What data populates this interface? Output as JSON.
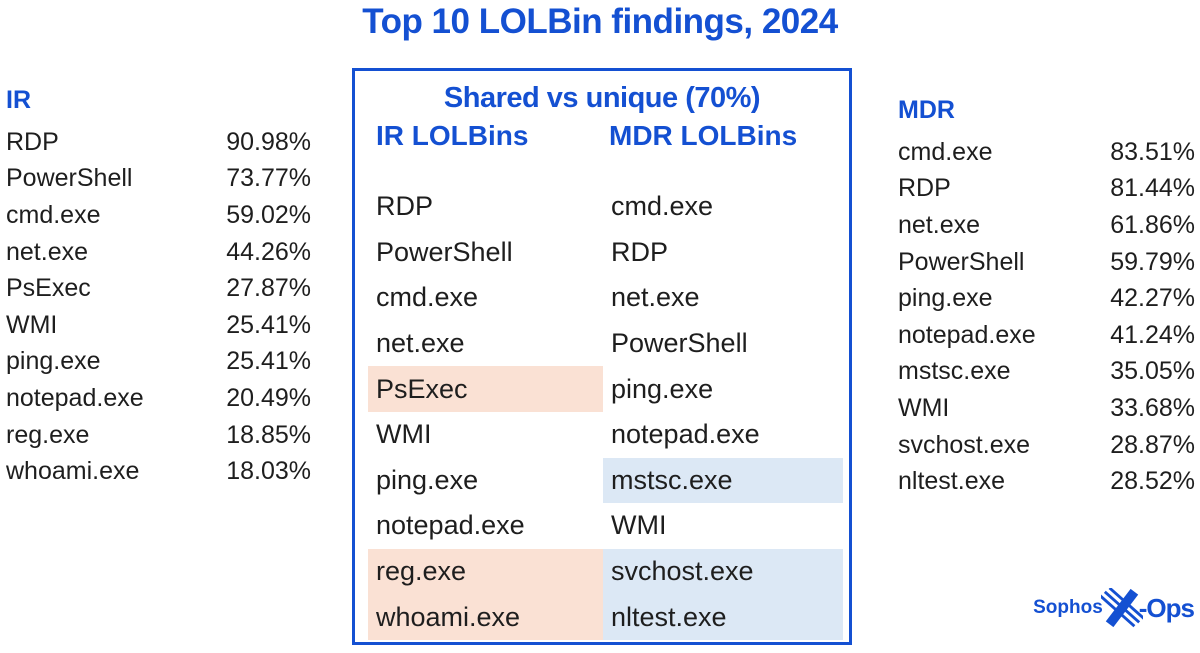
{
  "title": "Top 10 LOLBin findings, 2024",
  "colors": {
    "brand_blue": "#1450d2",
    "ir_unique_bg": "#fae1d4",
    "mdr_unique_bg": "#dce8f5",
    "text": "#1e1e1e"
  },
  "left_table": {
    "header": "IR",
    "rows": [
      {
        "name": "RDP",
        "value": "90.98%"
      },
      {
        "name": "PowerShell",
        "value": "73.77%"
      },
      {
        "name": "cmd.exe",
        "value": "59.02%"
      },
      {
        "name": "net.exe",
        "value": "44.26%"
      },
      {
        "name": "PsExec",
        "value": "27.87%"
      },
      {
        "name": "WMI",
        "value": "25.41%"
      },
      {
        "name": "ping.exe",
        "value": "25.41%"
      },
      {
        "name": "notepad.exe",
        "value": "20.49%"
      },
      {
        "name": "reg.exe",
        "value": "18.85%"
      },
      {
        "name": "whoami.exe",
        "value": "18.03%"
      }
    ]
  },
  "right_table": {
    "header": "MDR",
    "rows": [
      {
        "name": "cmd.exe",
        "value": "83.51%"
      },
      {
        "name": "RDP",
        "value": "81.44%"
      },
      {
        "name": "net.exe",
        "value": "61.86%"
      },
      {
        "name": "PowerShell",
        "value": "59.79%"
      },
      {
        "name": "ping.exe",
        "value": "42.27%"
      },
      {
        "name": "notepad.exe",
        "value": "41.24%"
      },
      {
        "name": "mstsc.exe",
        "value": "35.05%"
      },
      {
        "name": "WMI",
        "value": "33.68%"
      },
      {
        "name": "svchost.exe",
        "value": "28.87%"
      },
      {
        "name": "nltest.exe",
        "value": "28.52%"
      }
    ]
  },
  "center_box": {
    "title": "Shared vs unique (70%)",
    "ir_header": "IR LOLBins",
    "mdr_header": "MDR LOLBins",
    "rows": [
      {
        "ir": "RDP",
        "ir_unique": false,
        "mdr": "cmd.exe",
        "mdr_unique": false
      },
      {
        "ir": "PowerShell",
        "ir_unique": false,
        "mdr": "RDP",
        "mdr_unique": false
      },
      {
        "ir": "cmd.exe",
        "ir_unique": false,
        "mdr": "net.exe",
        "mdr_unique": false
      },
      {
        "ir": "net.exe",
        "ir_unique": false,
        "mdr": "PowerShell",
        "mdr_unique": false
      },
      {
        "ir": "PsExec",
        "ir_unique": true,
        "mdr": "ping.exe",
        "mdr_unique": false
      },
      {
        "ir": "WMI",
        "ir_unique": false,
        "mdr": "notepad.exe",
        "mdr_unique": false
      },
      {
        "ir": "ping.exe",
        "ir_unique": false,
        "mdr": "mstsc.exe",
        "mdr_unique": true
      },
      {
        "ir": "notepad.exe",
        "ir_unique": false,
        "mdr": "WMI",
        "mdr_unique": false
      },
      {
        "ir": "reg.exe",
        "ir_unique": true,
        "mdr": "svchost.exe",
        "mdr_unique": true
      },
      {
        "ir": "whoami.exe",
        "ir_unique": true,
        "mdr": "nltest.exe",
        "mdr_unique": true
      }
    ]
  },
  "logo": {
    "prefix": "Sophos",
    "suffix": "-Ops"
  },
  "chart_data": {
    "type": "table",
    "title": "Top 10 LOLBin findings, 2024",
    "tables": [
      {
        "name": "IR",
        "columns": [
          "LOLBin",
          "Percent"
        ],
        "rows": [
          [
            "RDP",
            90.98
          ],
          [
            "PowerShell",
            73.77
          ],
          [
            "cmd.exe",
            59.02
          ],
          [
            "net.exe",
            44.26
          ],
          [
            "PsExec",
            27.87
          ],
          [
            "WMI",
            25.41
          ],
          [
            "ping.exe",
            25.41
          ],
          [
            "notepad.exe",
            20.49
          ],
          [
            "reg.exe",
            18.85
          ],
          [
            "whoami.exe",
            18.03
          ]
        ]
      },
      {
        "name": "MDR",
        "columns": [
          "LOLBin",
          "Percent"
        ],
        "rows": [
          [
            "cmd.exe",
            83.51
          ],
          [
            "RDP",
            81.44
          ],
          [
            "net.exe",
            61.86
          ],
          [
            "PowerShell",
            59.79
          ],
          [
            "ping.exe",
            42.27
          ],
          [
            "notepad.exe",
            41.24
          ],
          [
            "mstsc.exe",
            35.05
          ],
          [
            "WMI",
            33.68
          ],
          [
            "svchost.exe",
            28.87
          ],
          [
            "nltest.exe",
            28.52
          ]
        ]
      },
      {
        "name": "Shared vs unique (70%)",
        "columns": [
          "IR LOLBins",
          "MDR LOLBins"
        ],
        "shared": [
          "RDP",
          "PowerShell",
          "cmd.exe",
          "net.exe",
          "WMI",
          "ping.exe",
          "notepad.exe"
        ],
        "unique_to_ir": [
          "PsExec",
          "reg.exe",
          "whoami.exe"
        ],
        "unique_to_mdr": [
          "mstsc.exe",
          "svchost.exe",
          "nltest.exe"
        ]
      }
    ]
  }
}
